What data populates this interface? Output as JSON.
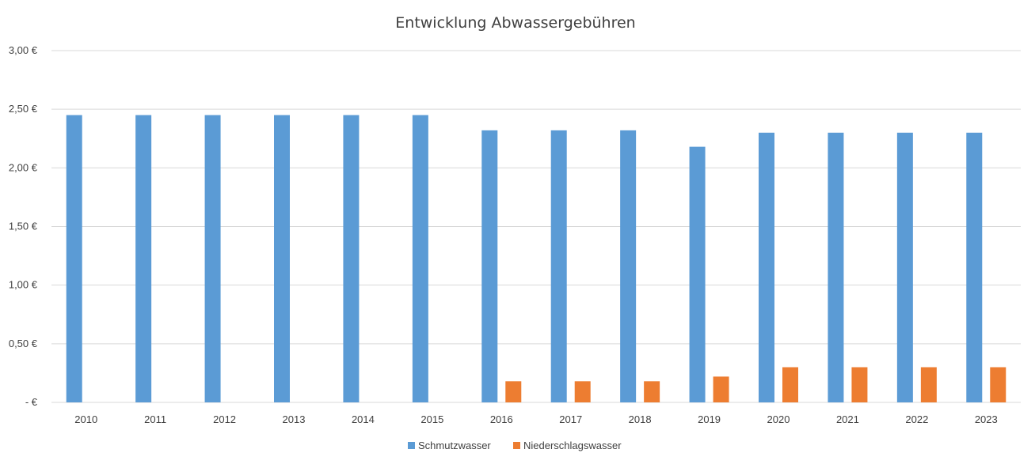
{
  "chart_data": {
    "type": "bar",
    "title": "Entwicklung Abwassergebühren",
    "xlabel": "",
    "ylabel": "",
    "ylim": [
      0,
      3
    ],
    "grid": true,
    "legend_position": "bottom",
    "y_ticks": [
      {
        "value": 0,
        "label": "-  €"
      },
      {
        "value": 0.5,
        "label": "0,50 €"
      },
      {
        "value": 1.0,
        "label": "1,00 €"
      },
      {
        "value": 1.5,
        "label": "1,50 €"
      },
      {
        "value": 2.0,
        "label": "2,00 €"
      },
      {
        "value": 2.5,
        "label": "2,50 €"
      },
      {
        "value": 3.0,
        "label": "3,00 €"
      }
    ],
    "categories": [
      "2010",
      "2011",
      "2012",
      "2013",
      "2014",
      "2015",
      "2016",
      "2017",
      "2018",
      "2019",
      "2020",
      "2021",
      "2022",
      "2023"
    ],
    "series": [
      {
        "name": "Schmutzwasser",
        "color": "#5B9BD5",
        "values": [
          2.45,
          2.45,
          2.45,
          2.45,
          2.45,
          2.45,
          2.32,
          2.32,
          2.32,
          2.18,
          2.3,
          2.3,
          2.3,
          2.3
        ]
      },
      {
        "name": "Niederschlagswasser",
        "color": "#ED7D31",
        "values": [
          0,
          0,
          0,
          0,
          0,
          0,
          0.18,
          0.18,
          0.18,
          0.22,
          0.3,
          0.3,
          0.3,
          0.3
        ]
      }
    ],
    "colors": {
      "grid": "#D9D9D9",
      "text": "#404040"
    }
  }
}
